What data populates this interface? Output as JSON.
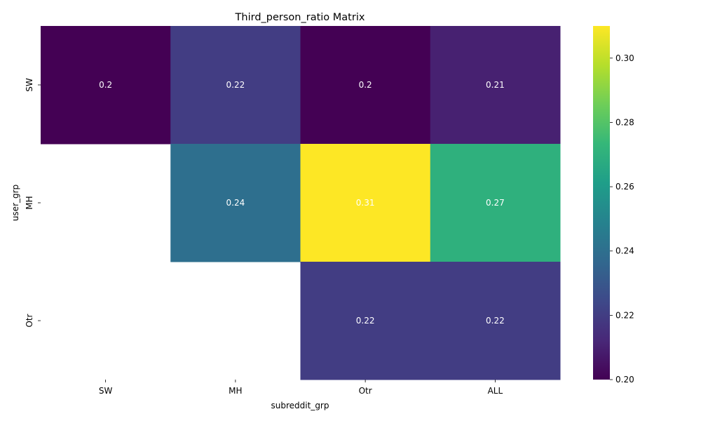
{
  "chart_data": {
    "type": "heatmap",
    "title": "Third_person_ratio Matrix",
    "xlabel": "subreddit_grp",
    "ylabel": "user_grp",
    "x_categories": [
      "SW",
      "MH",
      "Otr",
      "ALL"
    ],
    "y_categories": [
      "SW",
      "MH",
      "Otr"
    ],
    "values": [
      [
        0.2,
        0.22,
        0.2,
        0.21
      ],
      [
        null,
        0.24,
        0.31,
        0.27
      ],
      [
        null,
        null,
        0.22,
        0.22
      ]
    ],
    "value_labels": [
      [
        "0.2",
        "0.22",
        "0.2",
        "0.21"
      ],
      [
        null,
        "0.24",
        "0.31",
        "0.27"
      ],
      [
        null,
        null,
        "0.22",
        "0.22"
      ]
    ],
    "colormap": "viridis",
    "color_range": [
      0.2,
      0.31
    ],
    "colorbar_ticks": [
      "0.20",
      "0.22",
      "0.24",
      "0.26",
      "0.28",
      "0.30"
    ],
    "colorbar_stops": [
      "#440154",
      "#482878",
      "#3e4989",
      "#31688e",
      "#26828e",
      "#1f9e89",
      "#35b779",
      "#6ece58",
      "#b5de2b",
      "#fde725"
    ],
    "label_color": "#ffffff",
    "grid": false
  }
}
